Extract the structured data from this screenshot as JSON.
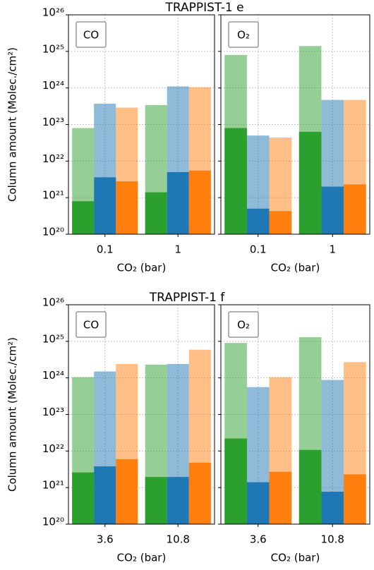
{
  "chart_data": [
    {
      "type": "bar",
      "title": "TRAPPIST-1 e",
      "ylabel": "Column amount (Molec./cm²)",
      "annotation": "CO",
      "xlabel": "CO₂ (bar)",
      "categories": [
        "0.1",
        "1"
      ],
      "yscale": "log",
      "ylim": [
        1e+20,
        1e+26
      ],
      "yticks": [
        {
          "value": 1e+20,
          "label": "10²⁰"
        },
        {
          "value": 1e+21,
          "label": "10²¹"
        },
        {
          "value": 1e+22,
          "label": "10²²"
        },
        {
          "value": 1e+23,
          "label": "10²³"
        },
        {
          "value": 1e+24,
          "label": "10²⁴"
        },
        {
          "value": 1e+25,
          "label": "10²⁵"
        },
        {
          "value": 1e+26,
          "label": "10²⁶"
        }
      ],
      "grid": true,
      "alpha": 0.5,
      "series": [
        {
          "color": "#2ca02c",
          "values": [
            8e+22,
            3.4e+23
          ],
          "inner_values": [
            8e+20,
            1.4e+21
          ]
        },
        {
          "color": "#1f77b4",
          "values": [
            3.7e+23,
            1.1e+24
          ],
          "inner_values": [
            3.6e+21,
            5e+21
          ]
        },
        {
          "color": "#ff7f0e",
          "values": [
            2.9e+23,
            1.05e+24
          ],
          "inner_values": [
            2.8e+21,
            5.5e+21
          ]
        }
      ]
    },
    {
      "type": "bar",
      "annotation": "O₂",
      "xlabel": "CO₂ (bar)",
      "categories": [
        "0.1",
        "1"
      ],
      "yscale": "log",
      "ylim": [
        1e+20,
        1e+26
      ],
      "yticks": [
        1e+20,
        1e+21,
        1e+22,
        1e+23,
        1e+24,
        1e+25,
        1e+26
      ],
      "grid": true,
      "alpha": 0.5,
      "series": [
        {
          "color": "#2ca02c",
          "values": [
            8e+24,
            1.4e+25
          ],
          "inner_values": [
            8e+22,
            6.3e+22
          ]
        },
        {
          "color": "#1f77b4",
          "values": [
            5e+22,
            4.7e+23
          ],
          "inner_values": [
            5e+20,
            2e+21
          ]
        },
        {
          "color": "#ff7f0e",
          "values": [
            4.4e+22,
            4.7e+23
          ],
          "inner_values": [
            4.3e+20,
            2.3e+21
          ]
        }
      ]
    },
    {
      "type": "bar",
      "title": "TRAPPIST-1 f",
      "ylabel": "Column amount (Molec./cm²)",
      "annotation": "CO",
      "xlabel": "CO₂ (bar)",
      "categories": [
        "3.6",
        "10.8"
      ],
      "yscale": "log",
      "ylim": [
        1e+20,
        1e+26
      ],
      "yticks": [
        {
          "value": 1e+20,
          "label": "10²⁰"
        },
        {
          "value": 1e+21,
          "label": "10²¹"
        },
        {
          "value": 1e+22,
          "label": "10²²"
        },
        {
          "value": 1e+23,
          "label": "10²³"
        },
        {
          "value": 1e+24,
          "label": "10²⁴"
        },
        {
          "value": 1e+25,
          "label": "10²⁵"
        },
        {
          "value": 1e+26,
          "label": "10²⁶"
        }
      ],
      "grid": true,
      "alpha": 0.5,
      "series": [
        {
          "color": "#2ca02c",
          "values": [
            1.05e+24,
            2.3e+24
          ],
          "inner_values": [
            2.6e+21,
            1.95e+21
          ]
        },
        {
          "color": "#1f77b4",
          "values": [
            1.5e+24,
            2.4e+24
          ],
          "inner_values": [
            3.8e+21,
            1.95e+21
          ]
        },
        {
          "color": "#ff7f0e",
          "values": [
            2.4e+24,
            5.9e+24
          ],
          "inner_values": [
            6e+21,
            4.8e+21
          ]
        }
      ]
    },
    {
      "type": "bar",
      "annotation": "O₂",
      "xlabel": "CO₂ (bar)",
      "categories": [
        "3.6",
        "10.8"
      ],
      "yscale": "log",
      "ylim": [
        1e+20,
        1e+26
      ],
      "yticks": [
        1e+20,
        1e+21,
        1e+22,
        1e+23,
        1e+24,
        1e+25,
        1e+26
      ],
      "grid": true,
      "alpha": 0.5,
      "series": [
        {
          "color": "#2ca02c",
          "values": [
            9e+24,
            1.3e+25
          ],
          "inner_values": [
            2.2e+22,
            1.07e+22
          ]
        },
        {
          "color": "#1f77b4",
          "values": [
            5.6e+23,
            8.8e+23
          ],
          "inner_values": [
            1.4e+21,
            7.7e+20
          ]
        },
        {
          "color": "#ff7f0e",
          "values": [
            1.05e+24,
            2.7e+24
          ],
          "inner_values": [
            2.7e+21,
            2.3e+21
          ]
        }
      ]
    }
  ]
}
